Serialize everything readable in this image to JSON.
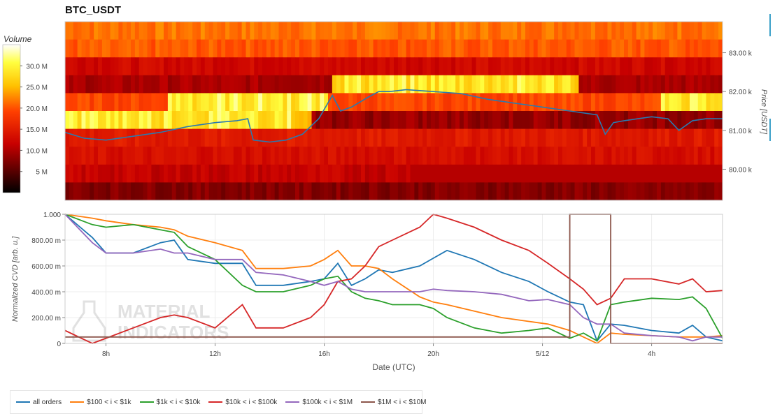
{
  "title": "BTC_USDT",
  "colors": {
    "all_orders": "#1f77b4",
    "s100_1k": "#ff7f0e",
    "s1k_10k": "#2ca02c",
    "s10k_100k": "#d62728",
    "s100k_1m": "#9467bd",
    "s1m_10m": "#8c564b",
    "price_line": "#2a7ab0"
  },
  "chart_data": [
    {
      "type": "heatmap",
      "title": "BTC_USDT",
      "ylabel": "Price [USDT]",
      "yticks": [
        "83.00 k",
        "82.00 k",
        "81.00 k",
        "80.00 k"
      ],
      "ytick_values": [
        83000,
        82000,
        81000,
        80000
      ],
      "ylim": [
        79200,
        83800
      ],
      "xlim": [
        6.5,
        30.6
      ],
      "colorbar": {
        "label": "Volume",
        "ticks": [
          "30.0 M",
          "25.0 M",
          "20.0 M",
          "15.0 M",
          "10.0 M",
          "5 M"
        ],
        "tick_values": [
          30,
          25,
          20,
          15,
          10,
          5
        ],
        "range": [
          0,
          35
        ],
        "colormap": "hot"
      },
      "price_series": {
        "x": [
          6.5,
          7.2,
          8.0,
          9.0,
          10.0,
          11.0,
          12.0,
          12.8,
          13.2,
          13.4,
          14.0,
          14.6,
          15.2,
          15.8,
          16.3,
          16.6,
          17.0,
          17.6,
          18.0,
          18.4,
          19.0,
          20.0,
          21.0,
          22.0,
          23.0,
          24.0,
          25.0,
          26.0,
          26.3,
          26.6,
          27.0,
          27.5,
          28.0,
          28.6,
          29.0,
          29.5,
          30.0,
          30.6
        ],
        "y": [
          80950,
          80800,
          80750,
          80850,
          80950,
          81100,
          81200,
          81250,
          81300,
          80750,
          80700,
          80750,
          80900,
          81300,
          81900,
          81500,
          81600,
          81850,
          82000,
          82000,
          82050,
          82000,
          81950,
          81800,
          81700,
          81600,
          81500,
          81400,
          80900,
          81200,
          81250,
          81300,
          81350,
          81300,
          81000,
          81250,
          81300,
          81300
        ]
      }
    },
    {
      "type": "line",
      "xlabel": "Date (UTC)",
      "ylabel": "Normalized CVD [arb. u.]",
      "ylim": [
        0,
        1
      ],
      "xlim": [
        6.5,
        30.6
      ],
      "yticks": [
        "1.000",
        "800.00 m",
        "600.00 m",
        "400.00 m",
        "200.00 m",
        "0"
      ],
      "ytick_values": [
        1.0,
        0.8,
        0.6,
        0.4,
        0.2,
        0
      ],
      "xticks": [
        "8h",
        "12h",
        "16h",
        "20h",
        "5/12",
        "4h"
      ],
      "xtick_values": [
        8,
        12,
        16,
        20,
        24,
        28
      ],
      "grid": true,
      "legend_position": "bottom",
      "x": [
        6.5,
        7.5,
        8.0,
        9.0,
        10.0,
        10.5,
        11.0,
        12.0,
        13.0,
        13.5,
        14.5,
        15.5,
        16.0,
        16.5,
        17.0,
        17.5,
        18.0,
        18.5,
        19.5,
        20.0,
        20.5,
        21.5,
        22.5,
        23.5,
        24.2,
        25.0,
        25.5,
        26.0,
        26.5,
        27.0,
        28.0,
        29.0,
        29.5,
        30.0,
        30.6
      ],
      "series": [
        {
          "name": "all orders",
          "values": [
            1.0,
            0.82,
            0.7,
            0.7,
            0.78,
            0.8,
            0.65,
            0.62,
            0.62,
            0.45,
            0.45,
            0.48,
            0.5,
            0.62,
            0.45,
            0.5,
            0.57,
            0.55,
            0.6,
            0.66,
            0.72,
            0.65,
            0.55,
            0.48,
            0.4,
            0.32,
            0.3,
            0.02,
            0.15,
            0.14,
            0.1,
            0.08,
            0.14,
            0.05,
            0.02
          ]
        },
        {
          "name": "$100 < i < $1k",
          "values": [
            1.0,
            0.97,
            0.95,
            0.92,
            0.9,
            0.88,
            0.83,
            0.78,
            0.72,
            0.58,
            0.58,
            0.6,
            0.65,
            0.72,
            0.6,
            0.6,
            0.58,
            0.5,
            0.36,
            0.32,
            0.3,
            0.25,
            0.2,
            0.17,
            0.15,
            0.1,
            0.05,
            0.0,
            0.08,
            0.07,
            0.06,
            0.05,
            0.05,
            0.05,
            0.06
          ]
        },
        {
          "name": "$1k < i < $10k",
          "values": [
            1.0,
            0.92,
            0.9,
            0.92,
            0.88,
            0.86,
            0.75,
            0.65,
            0.45,
            0.4,
            0.4,
            0.45,
            0.5,
            0.52,
            0.4,
            0.35,
            0.33,
            0.3,
            0.3,
            0.27,
            0.2,
            0.12,
            0.08,
            0.1,
            0.12,
            0.04,
            0.08,
            0.02,
            0.3,
            0.32,
            0.35,
            0.34,
            0.36,
            0.27,
            0.04
          ]
        },
        {
          "name": "$10k < i < $100k",
          "values": [
            0.1,
            0.0,
            0.04,
            0.12,
            0.2,
            0.22,
            0.2,
            0.12,
            0.3,
            0.12,
            0.12,
            0.2,
            0.3,
            0.48,
            0.5,
            0.6,
            0.75,
            0.8,
            0.9,
            1.0,
            0.97,
            0.9,
            0.8,
            0.72,
            0.62,
            0.5,
            0.42,
            0.3,
            0.35,
            0.5,
            0.5,
            0.46,
            0.5,
            0.4,
            0.41
          ]
        },
        {
          "name": "$100k < i < $1M",
          "values": [
            1.0,
            0.78,
            0.7,
            0.7,
            0.73,
            0.7,
            0.7,
            0.65,
            0.65,
            0.55,
            0.53,
            0.48,
            0.45,
            0.48,
            0.42,
            0.4,
            0.4,
            0.4,
            0.4,
            0.42,
            0.41,
            0.4,
            0.38,
            0.33,
            0.34,
            0.3,
            0.2,
            0.15,
            0.15,
            0.08,
            0.06,
            0.05,
            0.02,
            0.05,
            0.05
          ]
        },
        {
          "name": "$1M < i < $10M",
          "values": [
            0.05,
            0.05,
            0.05,
            0.05,
            0.05,
            0.05,
            0.05,
            0.05,
            0.05,
            0.05,
            0.05,
            0.05,
            0.05,
            0.05,
            0.05,
            0.05,
            0.05,
            0.05,
            0.05,
            0.05,
            0.05,
            0.05,
            0.05,
            0.05,
            0.05,
            1.0,
            1.0,
            1.0,
            0.0,
            0.0,
            0.0,
            0.0,
            0.0,
            0.0,
            0.0
          ]
        }
      ]
    }
  ],
  "legend": {
    "items": [
      "all orders",
      "$100 < i < $1k",
      "$1k < i < $10k",
      "$10k < i < $100k",
      "$100k < i < $1M",
      "$1M < i < $10M"
    ]
  },
  "watermark": "MATERIAL INDICATORS"
}
